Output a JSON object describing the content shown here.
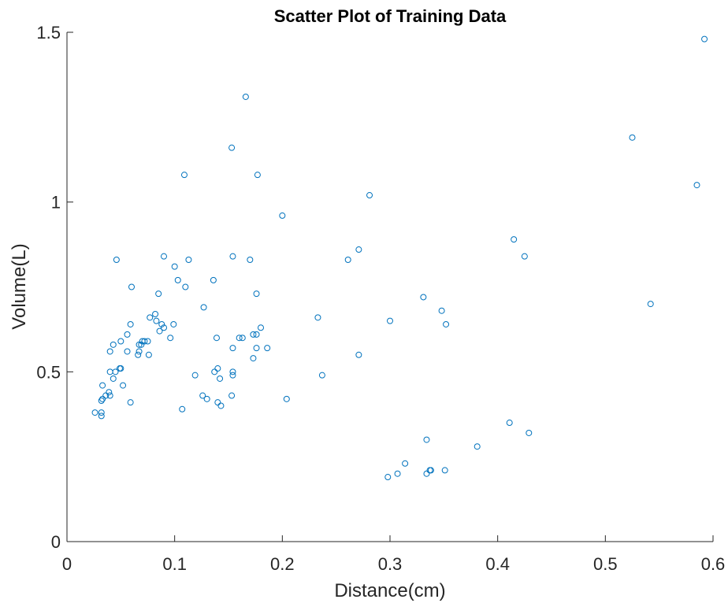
{
  "chart_data": {
    "type": "scatter",
    "title": "Scatter Plot of Training Data",
    "xlabel": "Distance(cm)",
    "ylabel": "Volume(L)",
    "xlim": [
      0,
      0.6
    ],
    "ylim": [
      0,
      1.5
    ],
    "xticks": [
      0,
      0.1,
      0.2,
      0.3,
      0.4,
      0.5,
      0.6
    ],
    "yticks": [
      0,
      0.5,
      1,
      1.5
    ],
    "xtick_labels": [
      "0",
      "0.1",
      "0.2",
      "0.3",
      "0.4",
      "0.5",
      "0.6"
    ],
    "ytick_labels": [
      "0",
      "0.5",
      "1",
      "1.5"
    ],
    "grid": false,
    "marker": "circle",
    "color": "#0072BD",
    "series": [
      {
        "points": [
          [
            0.026,
            0.38
          ],
          [
            0.032,
            0.38
          ],
          [
            0.032,
            0.37
          ],
          [
            0.032,
            0.415
          ],
          [
            0.033,
            0.42
          ],
          [
            0.033,
            0.46
          ],
          [
            0.036,
            0.43
          ],
          [
            0.039,
            0.44
          ],
          [
            0.04,
            0.43
          ],
          [
            0.04,
            0.5
          ],
          [
            0.04,
            0.56
          ],
          [
            0.043,
            0.58
          ],
          [
            0.043,
            0.48
          ],
          [
            0.045,
            0.5
          ],
          [
            0.046,
            0.83
          ],
          [
            0.049,
            0.51
          ],
          [
            0.05,
            0.51
          ],
          [
            0.05,
            0.59
          ],
          [
            0.052,
            0.46
          ],
          [
            0.056,
            0.56
          ],
          [
            0.056,
            0.61
          ],
          [
            0.059,
            0.41
          ],
          [
            0.059,
            0.64
          ],
          [
            0.06,
            0.75
          ],
          [
            0.066,
            0.55
          ],
          [
            0.067,
            0.56
          ],
          [
            0.067,
            0.58
          ],
          [
            0.069,
            0.58
          ],
          [
            0.07,
            0.59
          ],
          [
            0.072,
            0.59
          ],
          [
            0.075,
            0.59
          ],
          [
            0.076,
            0.55
          ],
          [
            0.077,
            0.66
          ],
          [
            0.082,
            0.67
          ],
          [
            0.083,
            0.65
          ],
          [
            0.085,
            0.73
          ],
          [
            0.086,
            0.62
          ],
          [
            0.088,
            0.64
          ],
          [
            0.09,
            0.63
          ],
          [
            0.09,
            0.84
          ],
          [
            0.096,
            0.6
          ],
          [
            0.099,
            0.64
          ],
          [
            0.1,
            0.81
          ],
          [
            0.103,
            0.77
          ],
          [
            0.107,
            0.39
          ],
          [
            0.109,
            1.08
          ],
          [
            0.11,
            0.75
          ],
          [
            0.113,
            0.83
          ],
          [
            0.119,
            0.49
          ],
          [
            0.126,
            0.43
          ],
          [
            0.127,
            0.69
          ],
          [
            0.13,
            0.42
          ],
          [
            0.136,
            0.77
          ],
          [
            0.137,
            0.5
          ],
          [
            0.139,
            0.6
          ],
          [
            0.14,
            0.41
          ],
          [
            0.14,
            0.51
          ],
          [
            0.142,
            0.48
          ],
          [
            0.143,
            0.4
          ],
          [
            0.153,
            1.16
          ],
          [
            0.153,
            0.43
          ],
          [
            0.154,
            0.49
          ],
          [
            0.154,
            0.5
          ],
          [
            0.154,
            0.57
          ],
          [
            0.154,
            0.84
          ],
          [
            0.16,
            0.6
          ],
          [
            0.163,
            0.6
          ],
          [
            0.166,
            1.31
          ],
          [
            0.17,
            0.83
          ],
          [
            0.173,
            0.61
          ],
          [
            0.173,
            0.54
          ],
          [
            0.176,
            0.61
          ],
          [
            0.176,
            0.57
          ],
          [
            0.176,
            0.73
          ],
          [
            0.177,
            1.08
          ],
          [
            0.18,
            0.63
          ],
          [
            0.186,
            0.57
          ],
          [
            0.2,
            0.96
          ],
          [
            0.204,
            0.42
          ],
          [
            0.233,
            0.66
          ],
          [
            0.237,
            0.49
          ],
          [
            0.261,
            0.83
          ],
          [
            0.271,
            0.86
          ],
          [
            0.271,
            0.55
          ],
          [
            0.281,
            1.02
          ],
          [
            0.298,
            0.19
          ],
          [
            0.3,
            0.65
          ],
          [
            0.307,
            0.2
          ],
          [
            0.314,
            0.23
          ],
          [
            0.331,
            0.72
          ],
          [
            0.334,
            0.3
          ],
          [
            0.334,
            0.2
          ],
          [
            0.337,
            0.21
          ],
          [
            0.338,
            0.21
          ],
          [
            0.348,
            0.68
          ],
          [
            0.351,
            0.21
          ],
          [
            0.352,
            0.64
          ],
          [
            0.381,
            0.28
          ],
          [
            0.411,
            0.35
          ],
          [
            0.415,
            0.89
          ],
          [
            0.425,
            0.84
          ],
          [
            0.429,
            0.32
          ],
          [
            0.525,
            1.19
          ],
          [
            0.542,
            0.7
          ],
          [
            0.585,
            1.05
          ],
          [
            0.592,
            1.48
          ]
        ]
      }
    ]
  }
}
